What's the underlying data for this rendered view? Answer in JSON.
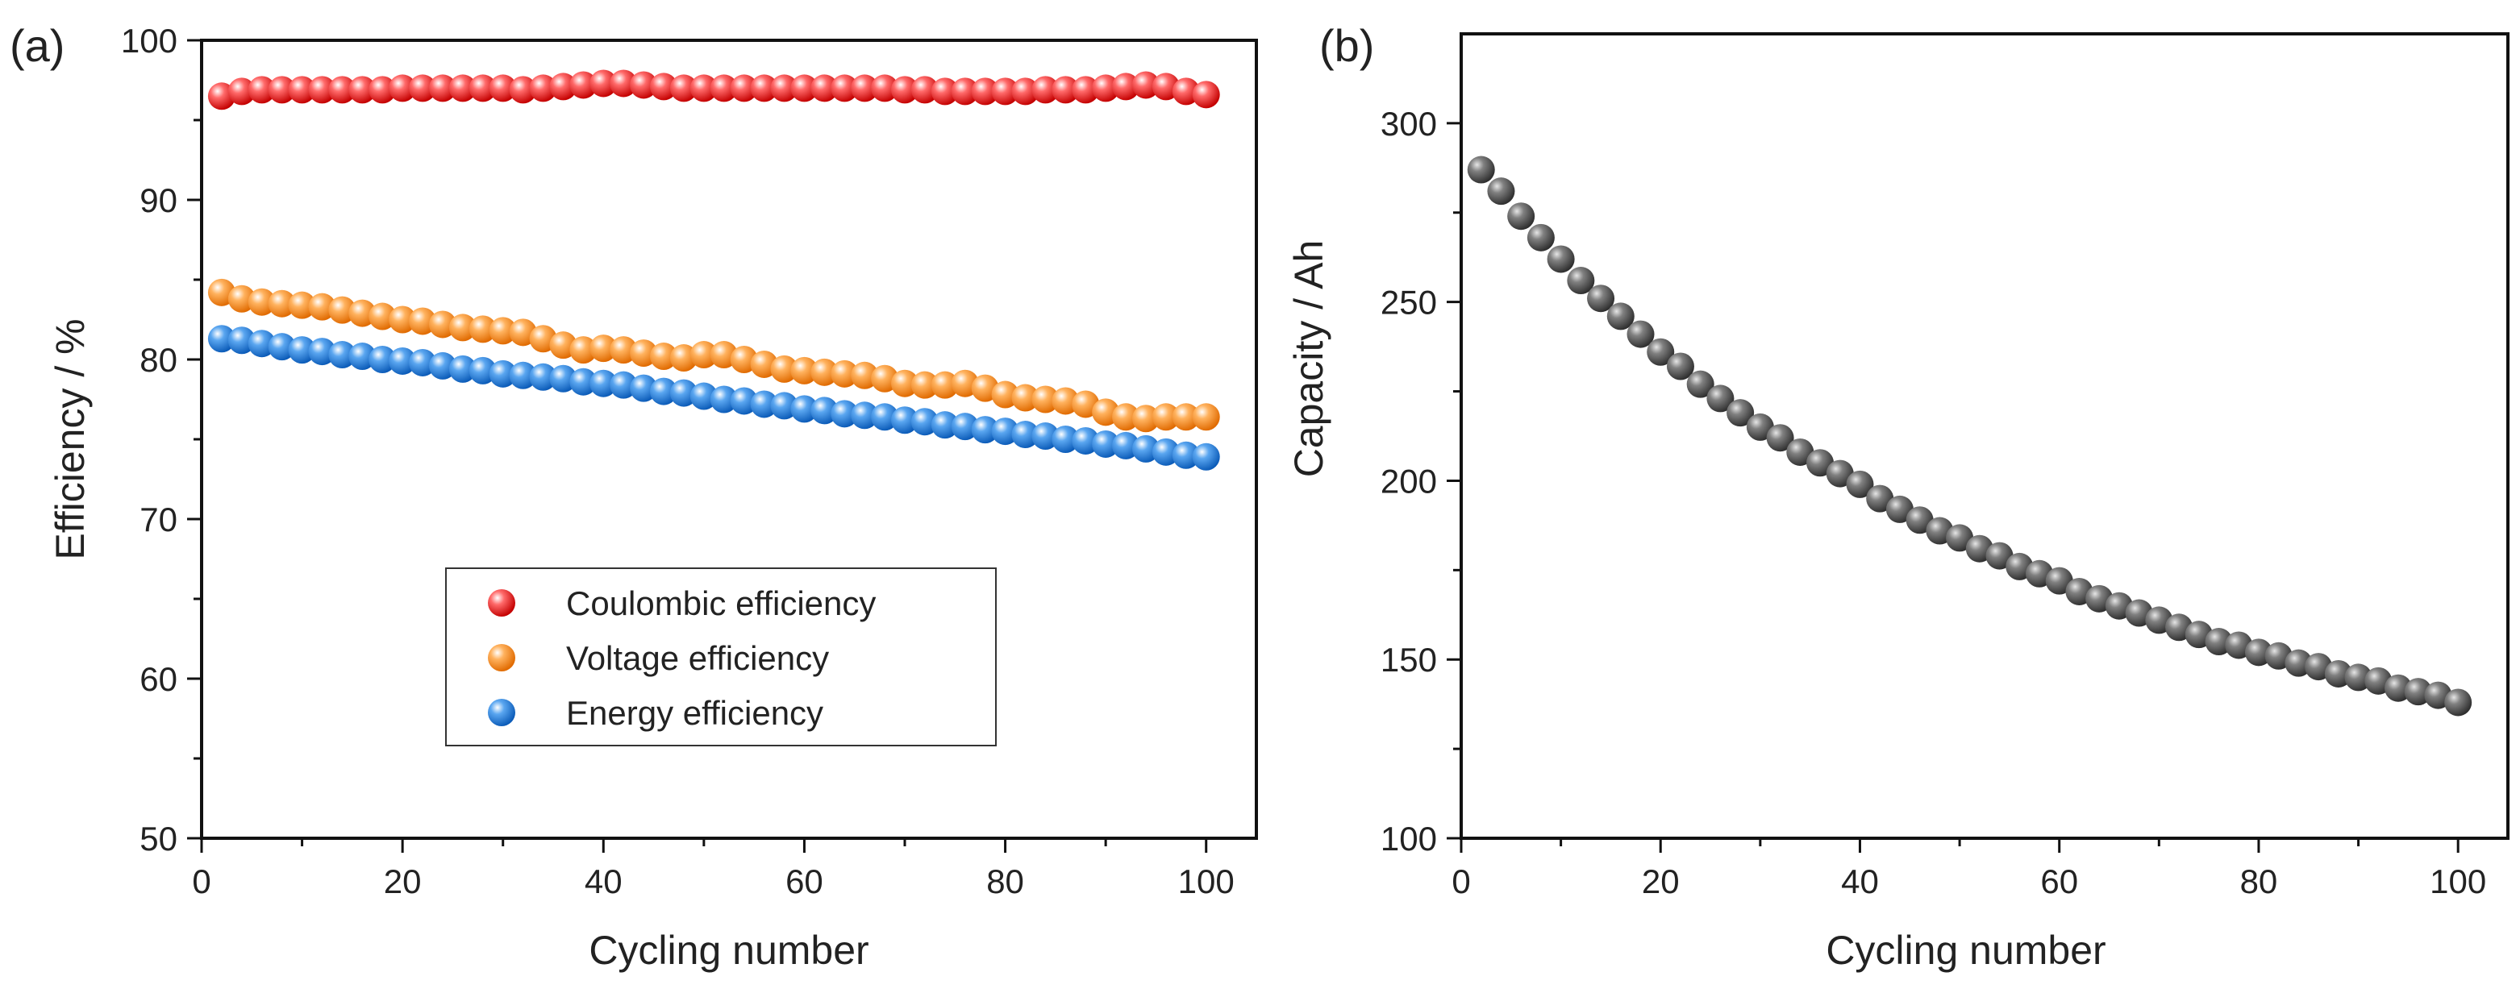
{
  "chart_data": [
    {
      "type": "scatter",
      "panel_label": "(a)",
      "xlabel": "Cycling number",
      "ylabel": "Efficiency / %",
      "xlim": [
        0,
        105
      ],
      "ylim": [
        50,
        100
      ],
      "xticks": [
        0,
        20,
        40,
        60,
        80,
        100
      ],
      "yticks": [
        50,
        60,
        70,
        80,
        90,
        100
      ],
      "x": [
        2,
        4,
        6,
        8,
        10,
        12,
        14,
        16,
        18,
        20,
        22,
        24,
        26,
        28,
        30,
        32,
        34,
        36,
        38,
        40,
        42,
        44,
        46,
        48,
        50,
        52,
        54,
        56,
        58,
        60,
        62,
        64,
        66,
        68,
        70,
        72,
        74,
        76,
        78,
        80,
        82,
        84,
        86,
        88,
        90,
        92,
        94,
        96,
        98,
        100
      ],
      "series": [
        {
          "name": "Coulombic efficiency",
          "color": "#e8141c",
          "values": [
            96.5,
            96.8,
            96.9,
            96.9,
            96.9,
            96.9,
            96.9,
            96.9,
            96.9,
            97.0,
            97.0,
            97.0,
            97.0,
            97.0,
            97.0,
            96.9,
            97.0,
            97.1,
            97.2,
            97.3,
            97.3,
            97.2,
            97.1,
            97.0,
            97.0,
            97.0,
            97.0,
            97.0,
            97.0,
            97.0,
            97.0,
            97.0,
            97.0,
            97.0,
            96.9,
            96.9,
            96.8,
            96.8,
            96.8,
            96.8,
            96.8,
            96.9,
            96.9,
            96.9,
            97.0,
            97.1,
            97.2,
            97.1,
            96.8,
            96.6
          ]
        },
        {
          "name": "Voltage efficiency",
          "color": "#f7860f",
          "values": [
            84.2,
            83.8,
            83.6,
            83.5,
            83.4,
            83.3,
            83.1,
            82.9,
            82.7,
            82.5,
            82.4,
            82.2,
            82.0,
            81.9,
            81.8,
            81.7,
            81.3,
            80.9,
            80.6,
            80.7,
            80.6,
            80.4,
            80.2,
            80.1,
            80.3,
            80.3,
            80.0,
            79.7,
            79.4,
            79.3,
            79.2,
            79.1,
            79.0,
            78.8,
            78.5,
            78.4,
            78.4,
            78.5,
            78.2,
            77.8,
            77.6,
            77.5,
            77.4,
            77.2,
            76.7,
            76.4,
            76.3,
            76.4,
            76.4,
            76.4
          ]
        },
        {
          "name": "Energy efficiency",
          "color": "#1f78d9",
          "values": [
            81.3,
            81.2,
            81.0,
            80.8,
            80.6,
            80.5,
            80.3,
            80.2,
            80.0,
            79.9,
            79.8,
            79.6,
            79.4,
            79.3,
            79.1,
            79.0,
            78.9,
            78.8,
            78.6,
            78.5,
            78.4,
            78.2,
            78.0,
            77.9,
            77.7,
            77.5,
            77.4,
            77.2,
            77.1,
            76.9,
            76.8,
            76.6,
            76.5,
            76.4,
            76.2,
            76.1,
            75.9,
            75.8,
            75.6,
            75.5,
            75.3,
            75.2,
            75.0,
            74.9,
            74.7,
            74.6,
            74.4,
            74.2,
            74.0,
            73.9
          ]
        }
      ],
      "legend": {
        "placement": "center-bottom",
        "entries": [
          "Coulombic efficiency",
          "Voltage efficiency",
          "Energy efficiency"
        ]
      }
    },
    {
      "type": "scatter",
      "panel_label": "(b)",
      "xlabel": "Cycling number",
      "ylabel": "Capacity / Ah",
      "xlim": [
        0,
        105
      ],
      "ylim": [
        100,
        325
      ],
      "xticks": [
        0,
        20,
        40,
        60,
        80,
        100
      ],
      "yticks": [
        100,
        150,
        200,
        250,
        300
      ],
      "x": [
        2,
        4,
        6,
        8,
        10,
        12,
        14,
        16,
        18,
        20,
        22,
        24,
        26,
        28,
        30,
        32,
        34,
        36,
        38,
        40,
        42,
        44,
        46,
        48,
        50,
        52,
        54,
        56,
        58,
        60,
        62,
        64,
        66,
        68,
        70,
        72,
        74,
        76,
        78,
        80,
        82,
        84,
        86,
        88,
        90,
        92,
        94,
        96,
        98,
        100
      ],
      "series": [
        {
          "name": "Capacity",
          "color": "#5a5a5a",
          "values": [
            287,
            281,
            274,
            268,
            262,
            256,
            251,
            246,
            241,
            236,
            232,
            227,
            223,
            219,
            215,
            212,
            208,
            205,
            202,
            199,
            195,
            192,
            189,
            186,
            184,
            181,
            179,
            176,
            174,
            172,
            169,
            167,
            165,
            163,
            161,
            159,
            157,
            155,
            154,
            152,
            151,
            149,
            148,
            146,
            145,
            144,
            142,
            141,
            140,
            138
          ]
        }
      ]
    }
  ]
}
